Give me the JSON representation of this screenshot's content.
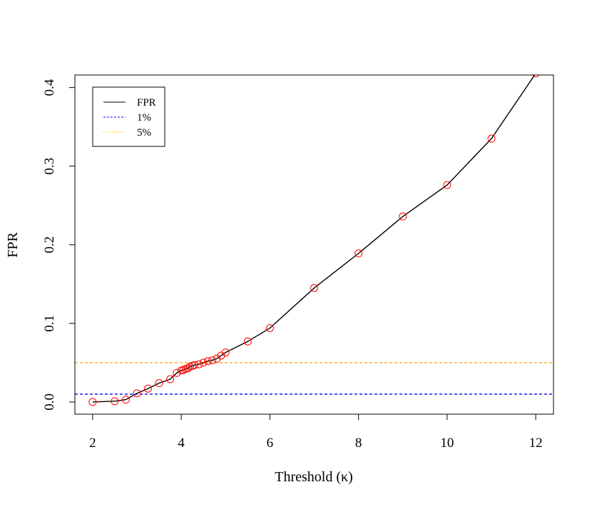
{
  "chart_data": {
    "type": "line",
    "title": "",
    "xlabel": "Threshold (κ)",
    "ylabel": "FPR",
    "xlim": [
      1.6,
      12.4
    ],
    "ylim": [
      -0.0155,
      0.416
    ],
    "x_ticks": [
      2,
      4,
      6,
      8,
      10,
      12
    ],
    "y_ticks": [
      0.0,
      0.1,
      0.2,
      0.3,
      0.4
    ],
    "x_tick_labels": [
      "2",
      "4",
      "6",
      "8",
      "10",
      "12"
    ],
    "y_tick_labels": [
      "0.0",
      "0.1",
      "0.2",
      "0.3",
      "0.4"
    ],
    "grid": false,
    "legend_position": "top-left",
    "series": [
      {
        "name": "FPR",
        "color": "#000000",
        "marker_color": "#ff0000",
        "x": [
          2,
          2.5,
          2.75,
          3,
          3.25,
          3.5,
          3.75,
          3.9,
          4.0,
          4.05,
          4.1,
          4.15,
          4.2,
          4.25,
          4.3,
          4.4,
          4.5,
          4.6,
          4.7,
          4.8,
          4.9,
          5.0,
          5.5,
          6,
          7,
          8,
          9,
          10,
          11,
          12
        ],
        "y": [
          0.0,
          0.001,
          0.003,
          0.011,
          0.017,
          0.024,
          0.029,
          0.037,
          0.04,
          0.041,
          0.042,
          0.043,
          0.045,
          0.046,
          0.047,
          0.048,
          0.05,
          0.052,
          0.053,
          0.055,
          0.059,
          0.063,
          0.077,
          0.094,
          0.145,
          0.189,
          0.236,
          0.276,
          0.335,
          0.418
        ]
      },
      {
        "name": "1%",
        "color": "#0000ff",
        "style": "dashed",
        "hline": 0.01
      },
      {
        "name": "5%",
        "color": "#ffa500",
        "style": "dashed",
        "hline": 0.05
      }
    ]
  }
}
